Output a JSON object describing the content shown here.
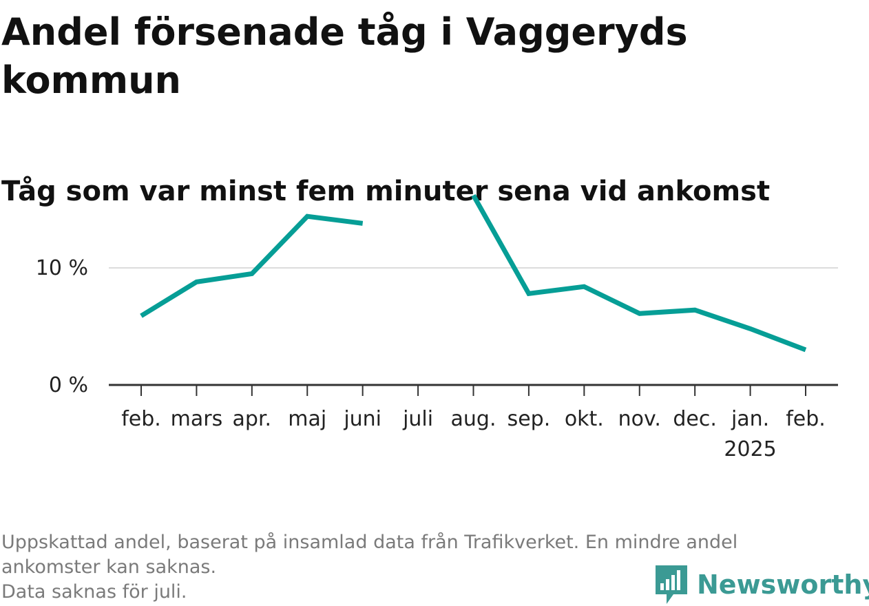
{
  "title": "Andel försenade tåg i Vaggeryds kommun",
  "subtitle": "Tåg som var minst fem minuter sena vid ankomst",
  "footnote": {
    "line1": "Uppskattad andel, baserat på insamlad data från Trafikverket. En mindre andel",
    "line2": "ankomster kan saknas.",
    "line3": "Data saknas för juli."
  },
  "brand": {
    "name": "Newsworthy",
    "icon": "newsworthy-logo-icon",
    "color": "#3b9a94"
  },
  "chart_data": {
    "type": "line",
    "categories": [
      "feb.",
      "mars",
      "apr.",
      "maj",
      "juni",
      "juli",
      "aug.",
      "sep.",
      "okt.",
      "nov.",
      "dec.",
      "jan.",
      "feb."
    ],
    "year_label": {
      "category_index": 11,
      "text": "2025"
    },
    "series": [
      {
        "values": [
          5.9,
          8.8,
          9.5,
          14.4,
          13.8,
          null,
          16.2,
          7.8,
          8.4,
          6.1,
          6.4,
          4.8,
          3.0
        ],
        "color": "#069e96"
      }
    ],
    "y_ticks": [
      {
        "value": 0,
        "label": "0 %"
      },
      {
        "value": 10,
        "label": "10 %"
      }
    ],
    "ylim": [
      0,
      17
    ],
    "xlabel": "",
    "ylabel": "",
    "grid": true,
    "legend": false
  }
}
